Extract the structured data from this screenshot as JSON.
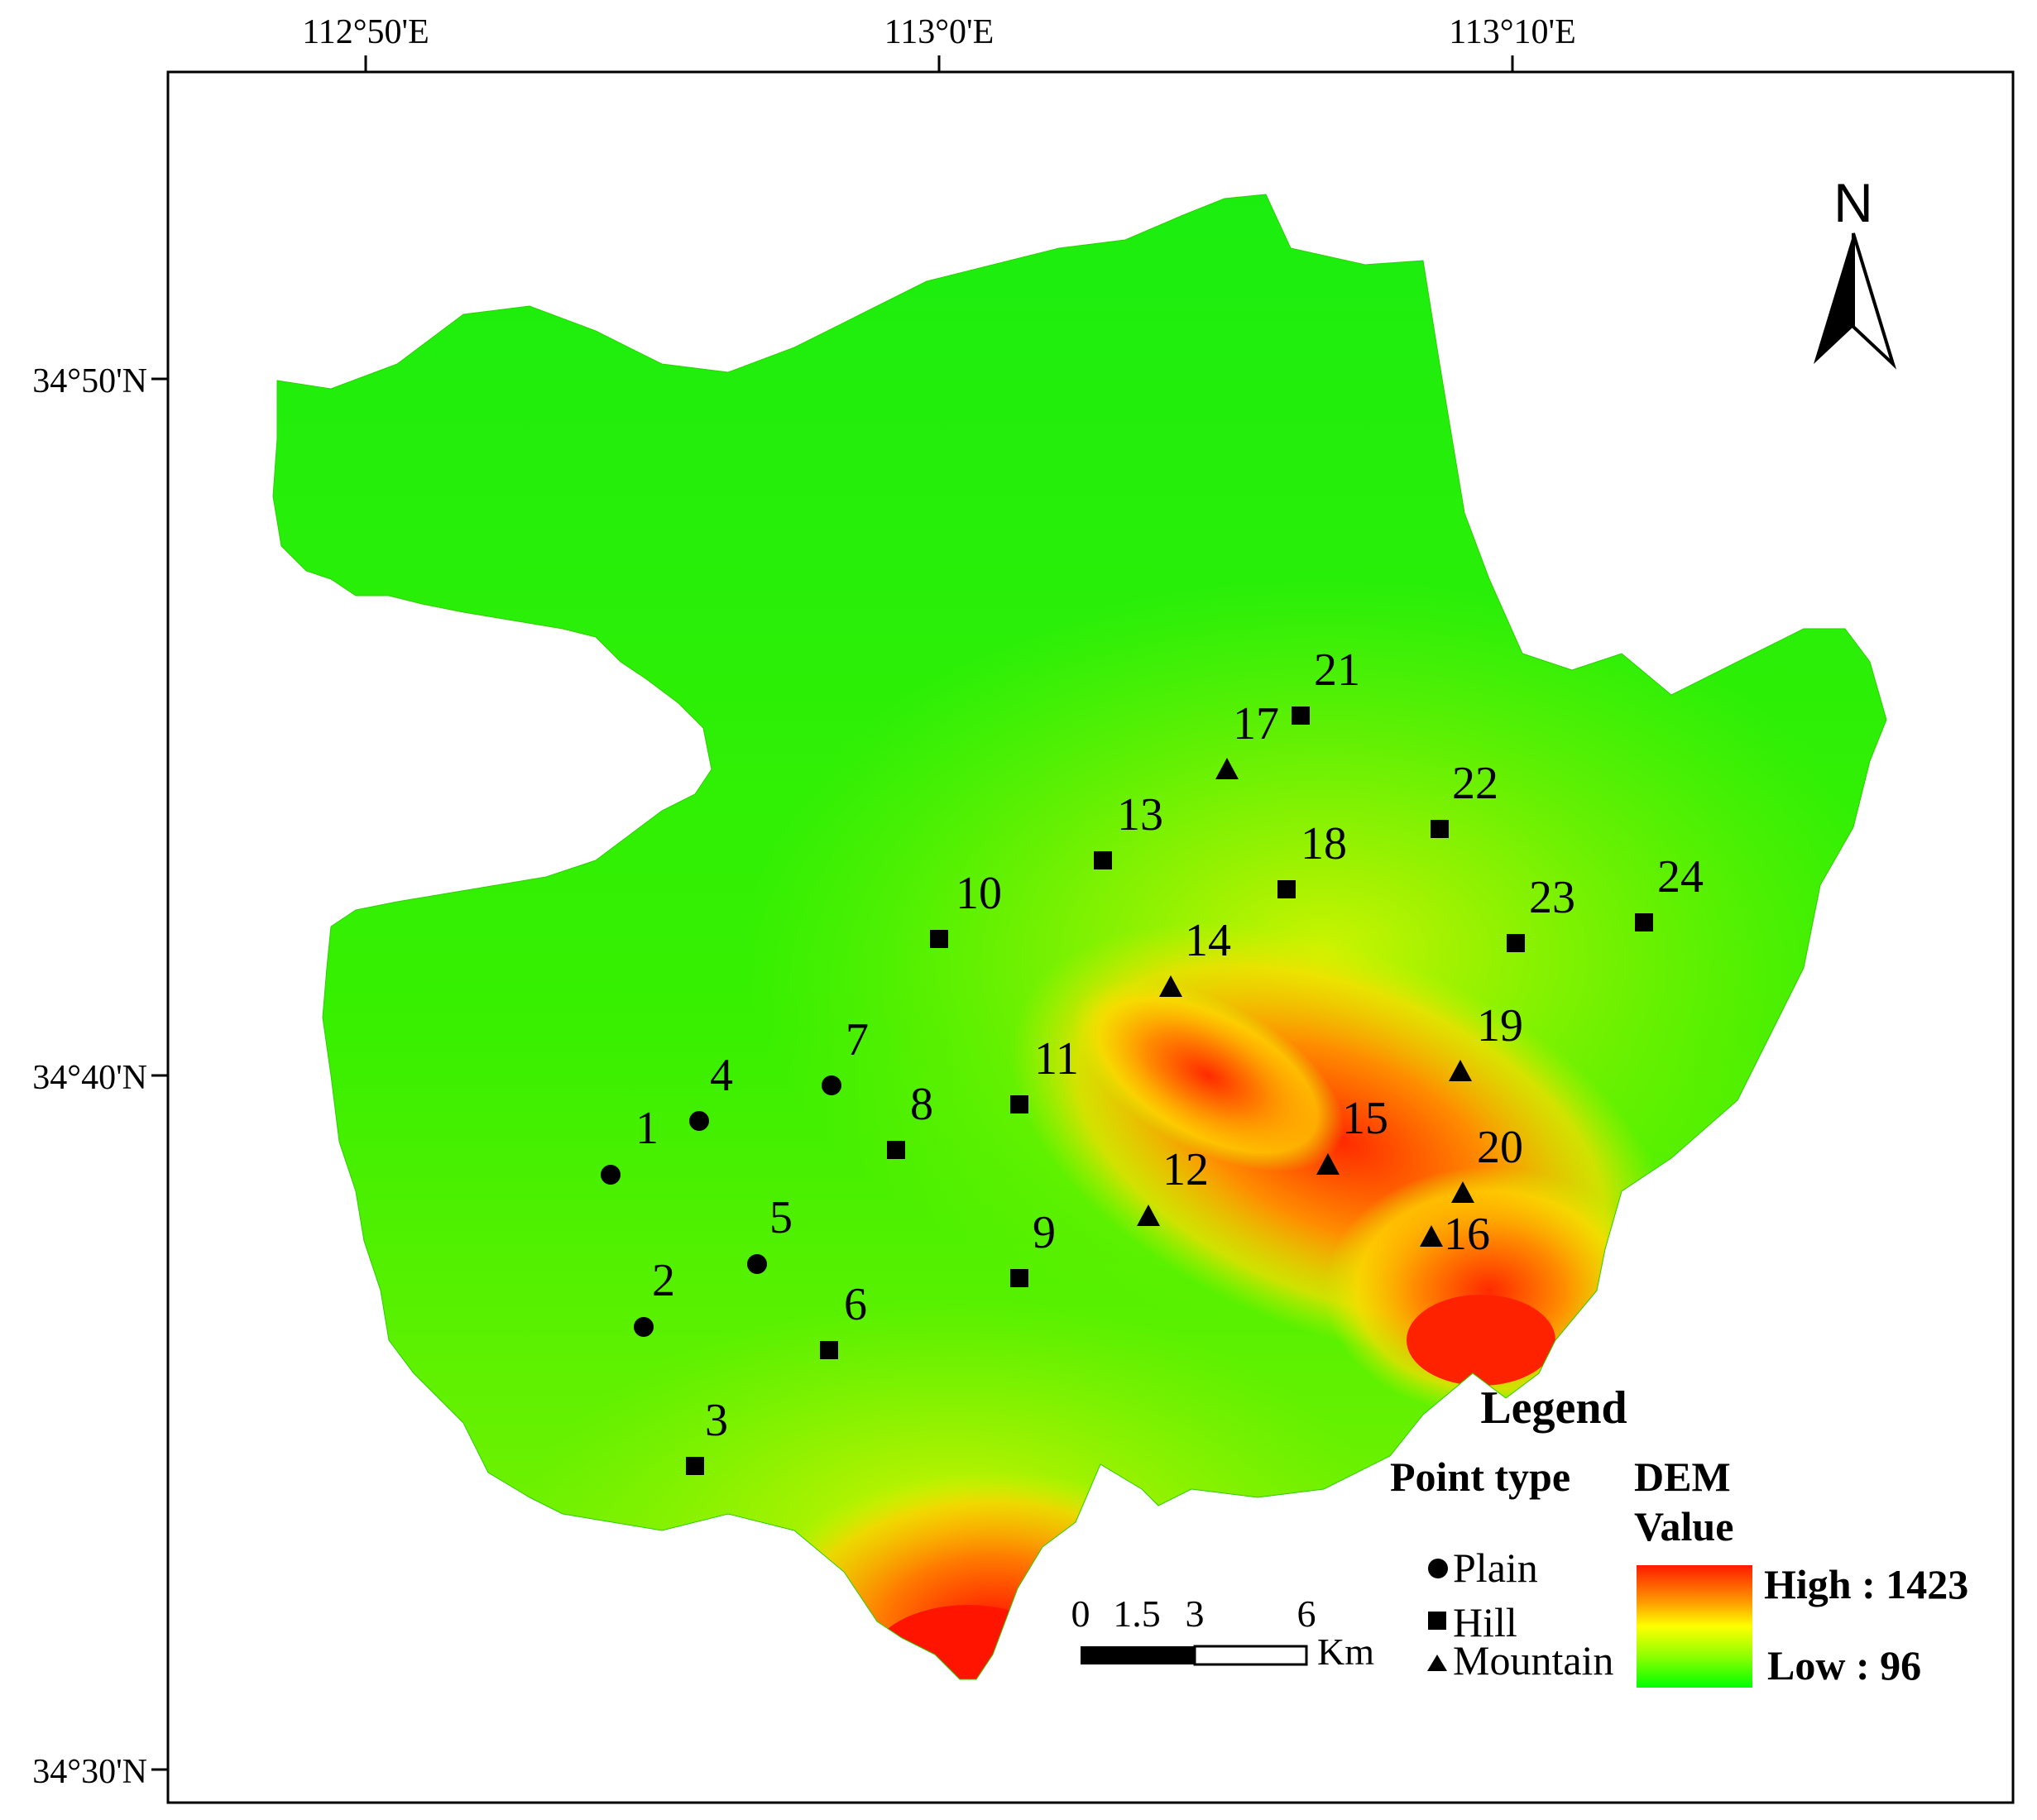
{
  "graticule": {
    "lon_labels": [
      "112°50'E",
      "113°0'E",
      "113°10'E"
    ],
    "lat_labels": [
      "34°50'N",
      "34°40'N",
      "34°30'N"
    ]
  },
  "north_arrow": {
    "label": "N",
    "icon": "north-arrow-icon"
  },
  "points": [
    {
      "id": "1",
      "type": "Plain"
    },
    {
      "id": "2",
      "type": "Plain"
    },
    {
      "id": "3",
      "type": "Hill"
    },
    {
      "id": "4",
      "type": "Plain"
    },
    {
      "id": "5",
      "type": "Plain"
    },
    {
      "id": "6",
      "type": "Hill"
    },
    {
      "id": "7",
      "type": "Plain"
    },
    {
      "id": "8",
      "type": "Hill"
    },
    {
      "id": "9",
      "type": "Hill"
    },
    {
      "id": "10",
      "type": "Hill"
    },
    {
      "id": "11",
      "type": "Hill"
    },
    {
      "id": "12",
      "type": "Mountain"
    },
    {
      "id": "13",
      "type": "Hill"
    },
    {
      "id": "14",
      "type": "Mountain"
    },
    {
      "id": "15",
      "type": "Mountain"
    },
    {
      "id": "16",
      "type": "Mountain"
    },
    {
      "id": "17",
      "type": "Mountain"
    },
    {
      "id": "18",
      "type": "Hill"
    },
    {
      "id": "19",
      "type": "Mountain"
    },
    {
      "id": "20",
      "type": "Mountain"
    },
    {
      "id": "21",
      "type": "Hill"
    },
    {
      "id": "22",
      "type": "Hill"
    },
    {
      "id": "23",
      "type": "Hill"
    },
    {
      "id": "24",
      "type": "Hill"
    }
  ],
  "legend": {
    "title": "Legend",
    "point_type_title": "Point type",
    "point_types": [
      {
        "label": "Plain",
        "symbol": "circle"
      },
      {
        "label": "Hill",
        "symbol": "square"
      },
      {
        "label": "Mountain",
        "symbol": "triangle"
      }
    ],
    "dem_title_line1": "DEM",
    "dem_title_line2": "Value",
    "dem_high": "High : 1423",
    "dem_low": "Low : 96",
    "dem_colors": [
      "#ff1a00",
      "#ff9a00",
      "#ffff00",
      "#8cff00",
      "#00ff00"
    ]
  },
  "scale_bar": {
    "ticks": [
      "0",
      "1.5",
      "3",
      "6"
    ],
    "unit": "Km"
  },
  "colors": {
    "lowland": "#22ee08",
    "hill": "#c8f400",
    "mountain": "#ff3000"
  }
}
